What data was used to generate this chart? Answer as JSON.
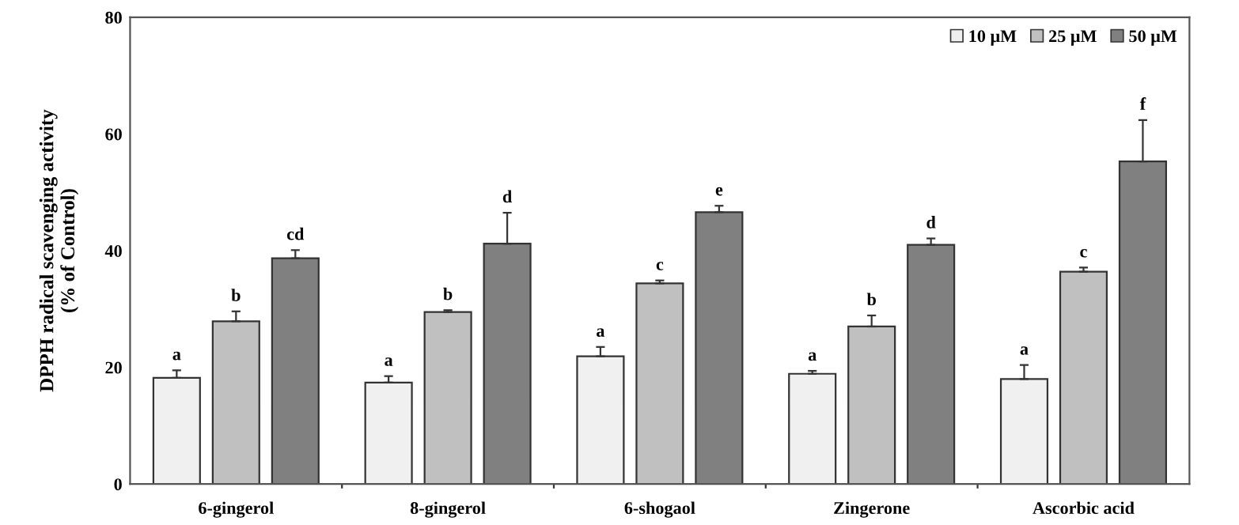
{
  "chart_data": {
    "type": "bar",
    "ylabel": "DPPH radical scavenging activity\n(% of Control)",
    "categories": [
      "6-gingerol",
      "8-gingerol",
      "6-shogaol",
      "Zingerone",
      "Ascorbic acid"
    ],
    "series": [
      {
        "name": "10 μM",
        "color": "#f0f0f0",
        "values": [
          18.2,
          17.4,
          21.9,
          18.9,
          18.0
        ],
        "errors": [
          [
            18.2,
            19.5
          ],
          [
            17.4,
            18.5
          ],
          [
            21.9,
            23.5
          ],
          [
            18.9,
            19.4
          ],
          [
            18.0,
            20.4
          ]
        ]
      },
      {
        "name": "25 μM",
        "color": "#c0c0c0",
        "values": [
          27.9,
          29.5,
          34.4,
          27.0,
          36.4
        ],
        "errors": [
          [
            27.9,
            29.6
          ],
          [
            29.5,
            29.8
          ],
          [
            34.4,
            34.9
          ],
          [
            27.0,
            28.9
          ],
          [
            36.4,
            37.1
          ]
        ]
      },
      {
        "name": "50 μM",
        "color": "#808080",
        "values": [
          38.7,
          41.2,
          46.6,
          41.0,
          55.3
        ],
        "errors": [
          [
            38.7,
            40.1
          ],
          [
            41.2,
            46.5
          ],
          [
            46.6,
            47.7
          ],
          [
            41.0,
            42.1
          ],
          [
            55.3,
            62.4
          ]
        ]
      }
    ],
    "annotations": [
      "a",
      "b",
      "cd",
      "a",
      "b",
      "d",
      "a",
      "c",
      "e",
      "a",
      "b",
      "d",
      "a",
      "c",
      "f"
    ],
    "ylim": [
      0,
      80
    ],
    "yticks": [
      0,
      20,
      40,
      60,
      80
    ],
    "grid": false,
    "legend": "top right"
  }
}
